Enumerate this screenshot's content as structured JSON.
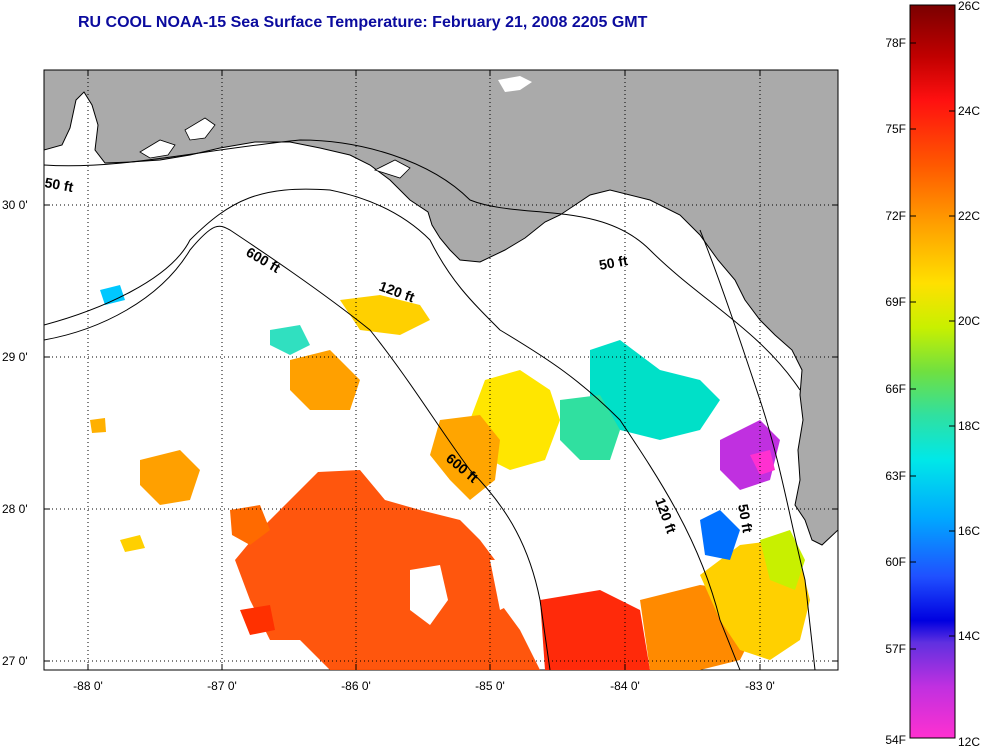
{
  "title": "RU COOL  NOAA-15  Sea Surface Temperature:  February 21, 2008 2205 GMT",
  "map": {
    "lat_labels": [
      "30 0'",
      "29 0'",
      "28 0'",
      "27 0'"
    ],
    "lon_labels": [
      "-88 0'",
      "-87 0'",
      "-86 0'",
      "-85 0'",
      "-84 0'",
      "-83 0'"
    ],
    "contours": [
      {
        "label": "50 ft"
      },
      {
        "label": "600 ft"
      },
      {
        "label": "120 ft"
      },
      {
        "label": "50 ft"
      },
      {
        "label": "600 ft"
      },
      {
        "label": "120 ft"
      },
      {
        "label": "50 ft"
      }
    ]
  },
  "colorbar": {
    "fahrenheit_labels": [
      "78F",
      "75F",
      "72F",
      "69F",
      "66F",
      "63F",
      "60F",
      "57F",
      "54F"
    ],
    "celsius_labels": [
      "26C",
      "24C",
      "22C",
      "20C",
      "18C",
      "16C",
      "14C",
      "12C"
    ]
  },
  "colors": {
    "land": "#aaaaaa",
    "title": "#0b0b9e",
    "scale_top": "#7a0000",
    "scale_bottom": "#ff30d0"
  }
}
